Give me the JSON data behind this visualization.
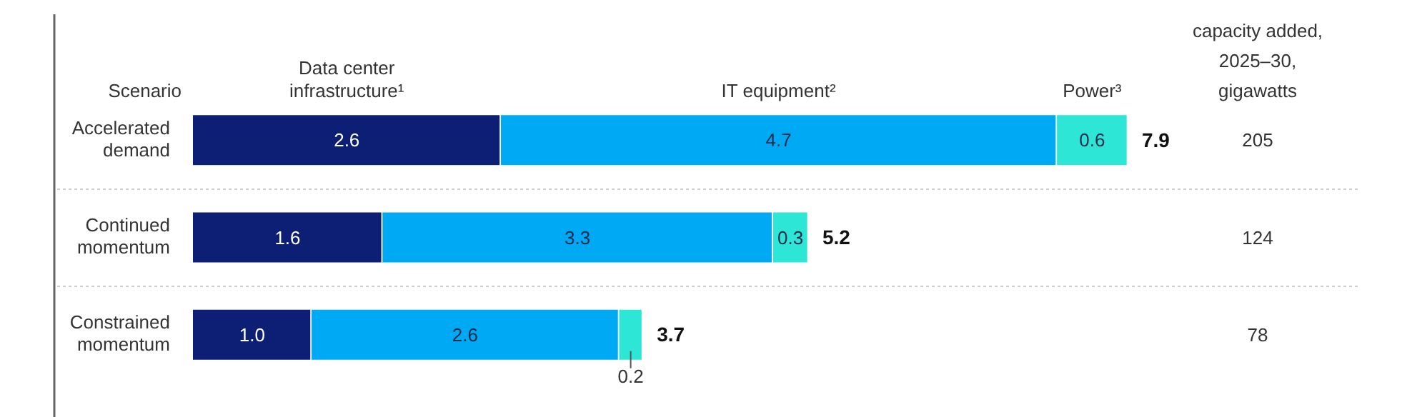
{
  "chart_data": {
    "type": "bar",
    "orientation": "horizontal",
    "stacked": true,
    "ylabel": "Scenario",
    "categories": [
      "Accelerated demand",
      "Continued momentum",
      "Constrained momentum"
    ],
    "series": [
      {
        "name": "Data center infrastructure¹",
        "color": "#0c1f75",
        "values": [
          2.6,
          1.6,
          1.0
        ],
        "value_labels": [
          "2.6",
          "1.6",
          "1.0"
        ]
      },
      {
        "name": "IT equipment²",
        "color": "#00a9f4",
        "values": [
          4.7,
          3.3,
          2.6
        ],
        "value_labels": [
          "4.7",
          "3.3",
          "2.6"
        ]
      },
      {
        "name": "Power³",
        "color": "#2ee6d6",
        "values": [
          0.6,
          0.3,
          0.2
        ],
        "value_labels": [
          "0.6",
          "0.3",
          "0.2"
        ]
      }
    ],
    "totals": [
      "7.9",
      "5.2",
      "3.7"
    ],
    "grid": "y",
    "legend": false,
    "annotations": [
      "capacity added, 2025–30, gigawatts",
      "205",
      "124",
      "78"
    ]
  }
}
